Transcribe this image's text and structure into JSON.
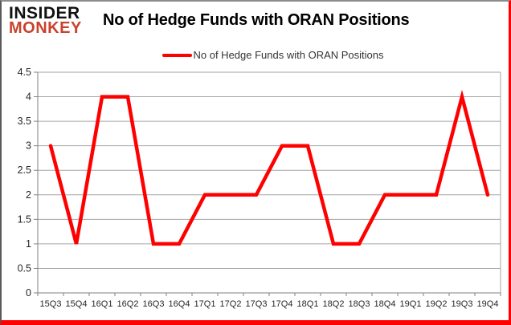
{
  "brand": {
    "line1": "INSIDER",
    "line2": "MONKEY"
  },
  "title": "No of Hedge Funds with ORAN Positions",
  "legend": {
    "label": "No of Hedge Funds with ORAN Positions"
  },
  "colors": {
    "accent_red": "#ff0000",
    "brand_red": "#c8432d",
    "frame_gray": "#8c8c8c",
    "frame_dark": "#595959",
    "gridline": "#a6a6a6",
    "axis": "#808080",
    "tick_label": "#262626"
  },
  "chart_data": {
    "type": "line",
    "title": "No of Hedge Funds with ORAN Positions",
    "categories": [
      "15Q3",
      "15Q4",
      "16Q1",
      "16Q2",
      "16Q3",
      "16Q4",
      "17Q1",
      "17Q2",
      "17Q3",
      "17Q4",
      "18Q1",
      "18Q2",
      "18Q3",
      "18Q4",
      "19Q1",
      "19Q2",
      "19Q3",
      "19Q4"
    ],
    "series": [
      {
        "name": "No of Hedge Funds with ORAN Positions",
        "values": [
          3,
          1,
          4,
          4,
          1,
          1,
          2,
          2,
          2,
          3,
          3,
          1,
          1,
          2,
          2,
          2,
          4,
          2
        ],
        "color": "#ff0000"
      }
    ],
    "xlabel": "",
    "ylabel": "",
    "ylim": [
      0,
      4.5
    ],
    "ytick_step": 0.5,
    "grid": true,
    "legend_position": "top-center",
    "line_width": 4.5,
    "markers": false
  }
}
